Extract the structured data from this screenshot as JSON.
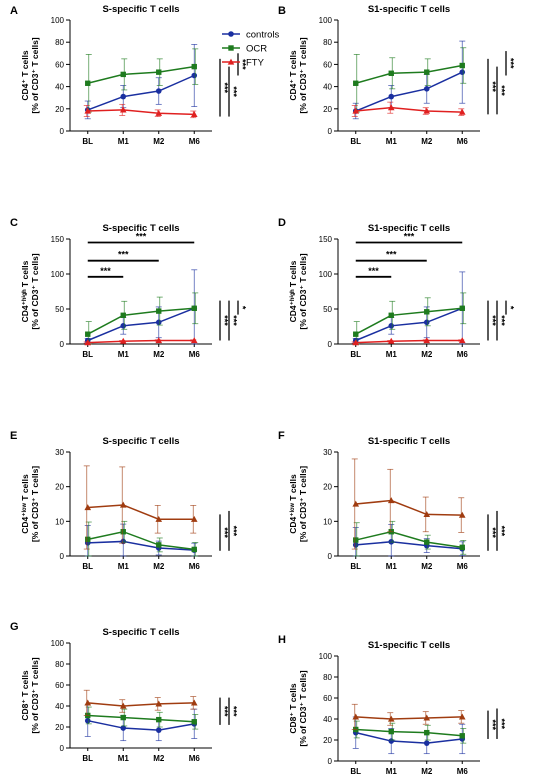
{
  "chart_data": [
    {
      "panel": "A",
      "type": "line",
      "title": "S-specific T cells",
      "ylabel": [
        "CD4⁺ T cells",
        "[% of CD3⁺ T cells]"
      ],
      "categories": [
        "BL",
        "M1",
        "M2",
        "M6"
      ],
      "ylim": [
        0,
        100
      ],
      "yticks": [
        0,
        20,
        40,
        60,
        80,
        100
      ],
      "series": [
        {
          "name": "controls",
          "color": "#1a2fa0",
          "marker": "circle",
          "values": [
            19,
            31,
            36,
            50
          ],
          "errors": [
            8,
            10,
            12,
            28
          ]
        },
        {
          "name": "OCR",
          "color": "#1e7b1e",
          "marker": "square",
          "values": [
            43,
            51,
            53,
            58
          ],
          "errors": [
            26,
            14,
            12,
            16
          ]
        },
        {
          "name": "FTY",
          "color": "#e02020",
          "marker": "triangle",
          "values": [
            18,
            19,
            16,
            15
          ],
          "errors": [
            5,
            5,
            3,
            3
          ]
        }
      ],
      "legend": {
        "position": "top-right",
        "entries": [
          "controls",
          "OCR",
          "FTY"
        ]
      },
      "vbrackets": [
        {
          "label": "***",
          "from": 13,
          "to": 65
        },
        {
          "label": "***",
          "from": 13,
          "to": 58
        },
        {
          "label": "***",
          "from": 50,
          "to": 70
        }
      ],
      "hbrackets": []
    },
    {
      "panel": "B",
      "type": "line",
      "title": "S1-specific T cells",
      "ylabel": [
        "CD4⁺ T cells",
        "[% of CD3⁺ T cells]"
      ],
      "categories": [
        "BL",
        "M1",
        "M2",
        "M6"
      ],
      "ylim": [
        0,
        100
      ],
      "yticks": [
        0,
        20,
        40,
        60,
        80,
        100
      ],
      "series": [
        {
          "name": "controls",
          "color": "#1a2fa0",
          "marker": "circle",
          "values": [
            18,
            31,
            38,
            53
          ],
          "errors": [
            7,
            10,
            13,
            28
          ]
        },
        {
          "name": "OCR",
          "color": "#1e7b1e",
          "marker": "square",
          "values": [
            43,
            52,
            53,
            59
          ],
          "errors": [
            26,
            14,
            12,
            16
          ]
        },
        {
          "name": "FTY",
          "color": "#e02020",
          "marker": "triangle",
          "values": [
            18,
            21,
            18,
            17
          ],
          "errors": [
            5,
            5,
            3,
            3
          ]
        }
      ],
      "vbrackets": [
        {
          "label": "***",
          "from": 15,
          "to": 65
        },
        {
          "label": "***",
          "from": 15,
          "to": 58
        },
        {
          "label": "***",
          "from": 50,
          "to": 72
        }
      ],
      "hbrackets": []
    },
    {
      "panel": "C",
      "type": "line",
      "title": "S-specific T cells",
      "ylabel": [
        "CD4⁺ʰⁱᵍʰ T cells",
        "[% of CD3⁺ T cells]"
      ],
      "categories": [
        "BL",
        "M1",
        "M2",
        "M6"
      ],
      "ylim": [
        0,
        150
      ],
      "yticks": [
        0,
        50,
        100,
        150
      ],
      "series": [
        {
          "name": "controls",
          "color": "#1a2fa0",
          "marker": "circle",
          "values": [
            5,
            26,
            31,
            51
          ],
          "errors": [
            3,
            12,
            22,
            55
          ]
        },
        {
          "name": "OCR",
          "color": "#1e7b1e",
          "marker": "square",
          "values": [
            14,
            41,
            47,
            51
          ],
          "errors": [
            18,
            20,
            20,
            22
          ]
        },
        {
          "name": "FTY",
          "color": "#e02020",
          "marker": "triangle",
          "values": [
            2,
            4,
            5,
            5
          ],
          "errors": [
            1,
            1,
            1,
            1
          ]
        }
      ],
      "vbrackets": [
        {
          "label": "***",
          "from": 5,
          "to": 62
        },
        {
          "label": "***",
          "from": 5,
          "to": 62
        },
        {
          "label": "*",
          "from": 42,
          "to": 62
        }
      ],
      "hbrackets": [
        {
          "label": "***",
          "from": 0,
          "to": 3,
          "y": 145
        },
        {
          "label": "***",
          "from": 0,
          "to": 2,
          "y": 119
        },
        {
          "label": "***",
          "from": 0,
          "to": 1,
          "y": 96
        }
      ]
    },
    {
      "panel": "D",
      "type": "line",
      "title": "S1-specific T cells",
      "ylabel": [
        "CD4⁺ʰⁱᵍʰ T cells",
        "[% of CD3⁺ T cells]"
      ],
      "categories": [
        "BL",
        "M1",
        "M2",
        "M6"
      ],
      "ylim": [
        0,
        150
      ],
      "yticks": [
        0,
        50,
        100,
        150
      ],
      "series": [
        {
          "name": "controls",
          "color": "#1a2fa0",
          "marker": "circle",
          "values": [
            5,
            26,
            31,
            51
          ],
          "errors": [
            3,
            12,
            22,
            52
          ]
        },
        {
          "name": "OCR",
          "color": "#1e7b1e",
          "marker": "square",
          "values": [
            14,
            41,
            46,
            51
          ],
          "errors": [
            18,
            20,
            20,
            22
          ]
        },
        {
          "name": "FTY",
          "color": "#e02020",
          "marker": "triangle",
          "values": [
            2,
            4,
            5,
            5
          ],
          "errors": [
            1,
            1,
            1,
            1
          ]
        }
      ],
      "vbrackets": [
        {
          "label": "***",
          "from": 5,
          "to": 62
        },
        {
          "label": "***",
          "from": 5,
          "to": 62
        },
        {
          "label": "*",
          "from": 42,
          "to": 62
        }
      ],
      "hbrackets": [
        {
          "label": "***",
          "from": 0,
          "to": 3,
          "y": 145
        },
        {
          "label": "***",
          "from": 0,
          "to": 2,
          "y": 119
        },
        {
          "label": "***",
          "from": 0,
          "to": 1,
          "y": 96
        }
      ]
    },
    {
      "panel": "E",
      "type": "line",
      "title": "S-specific T cells",
      "ylabel": [
        "CD4⁺ˡᵒʷ T cells",
        "[% of CD3⁺ T cells]"
      ],
      "categories": [
        "BL",
        "M1",
        "M2",
        "M6"
      ],
      "ylim": [
        0,
        30
      ],
      "yticks": [
        0,
        10,
        20,
        30
      ],
      "series": [
        {
          "name": "controls",
          "color": "#1a2fa0",
          "marker": "circle",
          "values": [
            3.8,
            4.2,
            2.3,
            1.7
          ],
          "errors": [
            5,
            5,
            2,
            2
          ]
        },
        {
          "name": "OCR",
          "color": "#1e7b1e",
          "marker": "square",
          "values": [
            4.8,
            7.0,
            3.2,
            1.9
          ],
          "errors": [
            5,
            3,
            2,
            2
          ]
        },
        {
          "name": "FTY",
          "color": "#a03c10",
          "marker": "triangle",
          "values": [
            14,
            14.7,
            10.6,
            10.6
          ],
          "errors": [
            12,
            11,
            4,
            4
          ]
        }
      ],
      "vbrackets": [
        {
          "label": "***",
          "from": 1.5,
          "to": 12
        },
        {
          "label": "***",
          "from": 1.5,
          "to": 13
        }
      ],
      "hbrackets": []
    },
    {
      "panel": "F",
      "type": "line",
      "title": "S1-specific T cells",
      "ylabel": [
        "CD4⁺ˡᵒʷ T cells",
        "[% of CD3⁺ T cells]"
      ],
      "categories": [
        "BL",
        "M1",
        "M2",
        "M6"
      ],
      "ylim": [
        0,
        30
      ],
      "yticks": [
        0,
        10,
        20,
        30
      ],
      "series": [
        {
          "name": "controls",
          "color": "#1a2fa0",
          "marker": "circle",
          "values": [
            3.2,
            4.1,
            3.0,
            2.1
          ],
          "errors": [
            5,
            5,
            2,
            2
          ]
        },
        {
          "name": "OCR",
          "color": "#1e7b1e",
          "marker": "square",
          "values": [
            4.6,
            7.0,
            4.0,
            2.5
          ],
          "errors": [
            5,
            3,
            2,
            2
          ]
        },
        {
          "name": "FTY",
          "color": "#a03c10",
          "marker": "triangle",
          "values": [
            15,
            16,
            12,
            11.8
          ],
          "errors": [
            13,
            9,
            5,
            5
          ]
        }
      ],
      "vbrackets": [
        {
          "label": "***",
          "from": 1.5,
          "to": 12
        },
        {
          "label": "***",
          "from": 1.5,
          "to": 13
        }
      ],
      "hbrackets": []
    },
    {
      "panel": "G",
      "type": "line",
      "title": "S-specific T cells",
      "ylabel": [
        "CD8⁺ T cells",
        "[% of CD3⁺ T cells]"
      ],
      "categories": [
        "BL",
        "M1",
        "M2",
        "M6"
      ],
      "ylim": [
        0,
        100
      ],
      "yticks": [
        0,
        20,
        40,
        60,
        80,
        100
      ],
      "series": [
        {
          "name": "controls",
          "color": "#1a2fa0",
          "marker": "circle",
          "values": [
            26,
            19,
            17,
            23
          ],
          "errors": [
            15,
            12,
            10,
            14
          ]
        },
        {
          "name": "OCR",
          "color": "#1e7b1e",
          "marker": "square",
          "values": [
            31,
            29,
            27,
            25
          ],
          "errors": [
            8,
            8,
            7,
            7
          ]
        },
        {
          "name": "FTY",
          "color": "#a03c10",
          "marker": "triangle",
          "values": [
            43,
            40,
            42,
            43
          ],
          "errors": [
            12,
            6,
            6,
            6
          ]
        }
      ],
      "vbrackets": [
        {
          "label": "***",
          "from": 22,
          "to": 48
        },
        {
          "label": "***",
          "from": 22,
          "to": 48
        }
      ],
      "hbrackets": []
    },
    {
      "panel": "H",
      "type": "line",
      "title": "S1-specific T cells",
      "ylabel": [
        "CD8⁺ T cells",
        "[% of CD3⁺ T cells]"
      ],
      "categories": [
        "BL",
        "M1",
        "M2",
        "M6"
      ],
      "ylim": [
        0,
        100
      ],
      "yticks": [
        0,
        20,
        40,
        60,
        80,
        100
      ],
      "series": [
        {
          "name": "controls",
          "color": "#1a2fa0",
          "marker": "circle",
          "values": [
            27,
            19,
            17,
            21
          ],
          "errors": [
            15,
            12,
            10,
            14
          ]
        },
        {
          "name": "OCR",
          "color": "#1e7b1e",
          "marker": "square",
          "values": [
            30,
            28,
            27,
            24
          ],
          "errors": [
            8,
            8,
            7,
            7
          ]
        },
        {
          "name": "FTY",
          "color": "#a03c10",
          "marker": "triangle",
          "values": [
            42,
            40,
            41,
            42
          ],
          "errors": [
            12,
            6,
            6,
            6
          ]
        }
      ],
      "vbrackets": [
        {
          "label": "***",
          "from": 21,
          "to": 48
        },
        {
          "label": "***",
          "from": 21,
          "to": 50
        }
      ],
      "hbrackets": []
    }
  ]
}
